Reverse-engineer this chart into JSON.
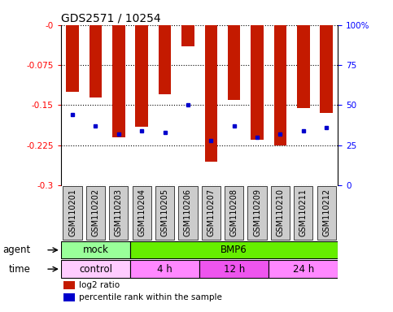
{
  "title": "GDS2571 / 10254",
  "samples": [
    "GSM110201",
    "GSM110202",
    "GSM110203",
    "GSM110204",
    "GSM110205",
    "GSM110206",
    "GSM110207",
    "GSM110208",
    "GSM110209",
    "GSM110210",
    "GSM110211",
    "GSM110212"
  ],
  "log2_ratio": [
    -0.125,
    -0.135,
    -0.21,
    -0.19,
    -0.13,
    -0.04,
    -0.255,
    -0.14,
    -0.215,
    -0.225,
    -0.155,
    -0.165
  ],
  "percentile_rank": [
    44,
    37,
    32,
    34,
    33,
    50,
    28,
    37,
    30,
    32,
    34,
    36
  ],
  "ylim_left": [
    -0.3,
    0.0
  ],
  "ylim_right": [
    0,
    100
  ],
  "yticks_left": [
    0.0,
    -0.075,
    -0.15,
    -0.225,
    -0.3
  ],
  "ytick_labels_left": [
    "-0",
    "-0.075",
    "-0.15",
    "-0.225",
    "-0.3"
  ],
  "yticks_right": [
    0,
    25,
    50,
    75,
    100
  ],
  "ytick_labels_right": [
    "0",
    "25",
    "50",
    "75",
    "100%"
  ],
  "bar_color": "#C41A00",
  "dot_color": "#0000CC",
  "grid_color": "#000000",
  "bg_color": "#FFFFFF",
  "xtick_bg_color": "#CCCCCC",
  "agent_groups": [
    {
      "label": "mock",
      "start": 0,
      "end": 3,
      "color": "#99FF99"
    },
    {
      "label": "BMP6",
      "start": 3,
      "end": 12,
      "color": "#66EE00"
    }
  ],
  "time_groups": [
    {
      "label": "control",
      "start": 0,
      "end": 3,
      "color": "#FFCCFF"
    },
    {
      "label": "4 h",
      "start": 3,
      "end": 6,
      "color": "#FF88FF"
    },
    {
      "label": "12 h",
      "start": 6,
      "end": 9,
      "color": "#EE55EE"
    },
    {
      "label": "24 h",
      "start": 9,
      "end": 12,
      "color": "#FF88FF"
    }
  ],
  "legend_red": "log2 ratio",
  "legend_blue": "percentile rank within the sample",
  "label_agent": "agent",
  "label_time": "time",
  "title_fontsize": 10,
  "tick_fontsize": 7.5,
  "label_fontsize": 8.5,
  "bar_width": 0.55
}
